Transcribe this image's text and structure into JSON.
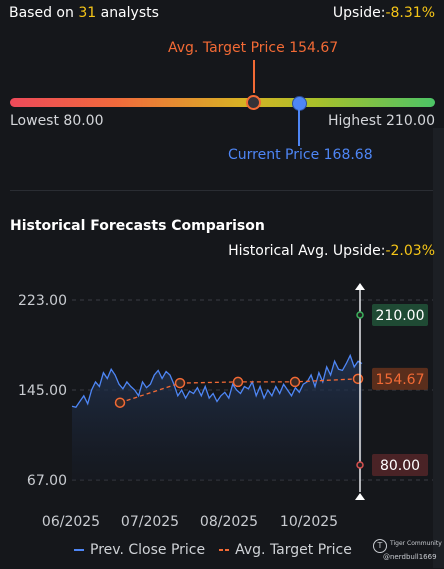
{
  "summary": {
    "analysts_prefix": "Based on",
    "analysts_count": "31",
    "analysts_suffix": "analysts",
    "upside_label": "Upside:",
    "upside_value": "-8.31%"
  },
  "range": {
    "avg_target_label": "Avg. Target Price 154.67",
    "current_label": "Current Price 168.68",
    "lowest_label": "Lowest 80.00",
    "highest_label": "Highest 210.00",
    "low": 80.0,
    "high": 210.0,
    "avg_target": 154.67,
    "current": 168.68
  },
  "history": {
    "title": "Historical Forecasts Comparison",
    "avg_upside_label": "Historical Avg. Upside:",
    "avg_upside_value": "-2.03%"
  },
  "chart_data": {
    "type": "line",
    "ylim": [
      67.0,
      223.0
    ],
    "y_ticks": [
      "223.00",
      "145.00",
      "67.00"
    ],
    "x_ticks": [
      "06/2025",
      "07/2025",
      "08/2025",
      "10/2025"
    ],
    "series": [
      {
        "name": "Prev. Close Price",
        "color": "#4e86f5",
        "values": [
          131,
          130,
          135,
          140,
          133,
          145,
          152,
          148,
          160,
          155,
          163,
          158,
          150,
          146,
          152,
          148,
          145,
          140,
          152,
          147,
          150,
          158,
          162,
          155,
          161,
          158,
          150,
          140,
          145,
          138,
          144,
          142,
          147,
          140,
          148,
          138,
          142,
          135,
          140,
          143,
          138,
          150,
          145,
          142,
          148,
          146,
          152,
          140,
          148,
          138,
          145,
          140,
          148,
          142,
          150,
          145,
          140,
          147,
          143,
          150,
          152,
          158,
          148,
          160,
          152,
          165,
          158,
          170,
          163,
          162,
          168,
          175,
          165,
          170,
          168
        ]
      },
      {
        "name": "Avg. Target Price",
        "color": "#f26a35",
        "points": [
          {
            "x": "07/2025",
            "y": 134
          },
          {
            "x": "07/2025",
            "y": 151
          },
          {
            "x": "08/2025",
            "y": 152
          },
          {
            "x": "09/2025",
            "y": 152
          },
          {
            "x": "10/2025",
            "y": 154.67
          }
        ]
      }
    ],
    "forecast_labels": {
      "high": {
        "value": 210.0,
        "text": "210.00",
        "color": "#4cc466"
      },
      "avg": {
        "value": 154.67,
        "text": "154.67",
        "color": "#f26a35"
      },
      "low": {
        "value": 80.0,
        "text": "80.00",
        "color": "#e05454"
      }
    }
  },
  "legend": {
    "close_label": "Prev. Close Price",
    "target_label": "Avg. Target Price"
  },
  "watermark": {
    "brand": "Tiger Community",
    "handle": "@nerdbull1669"
  }
}
